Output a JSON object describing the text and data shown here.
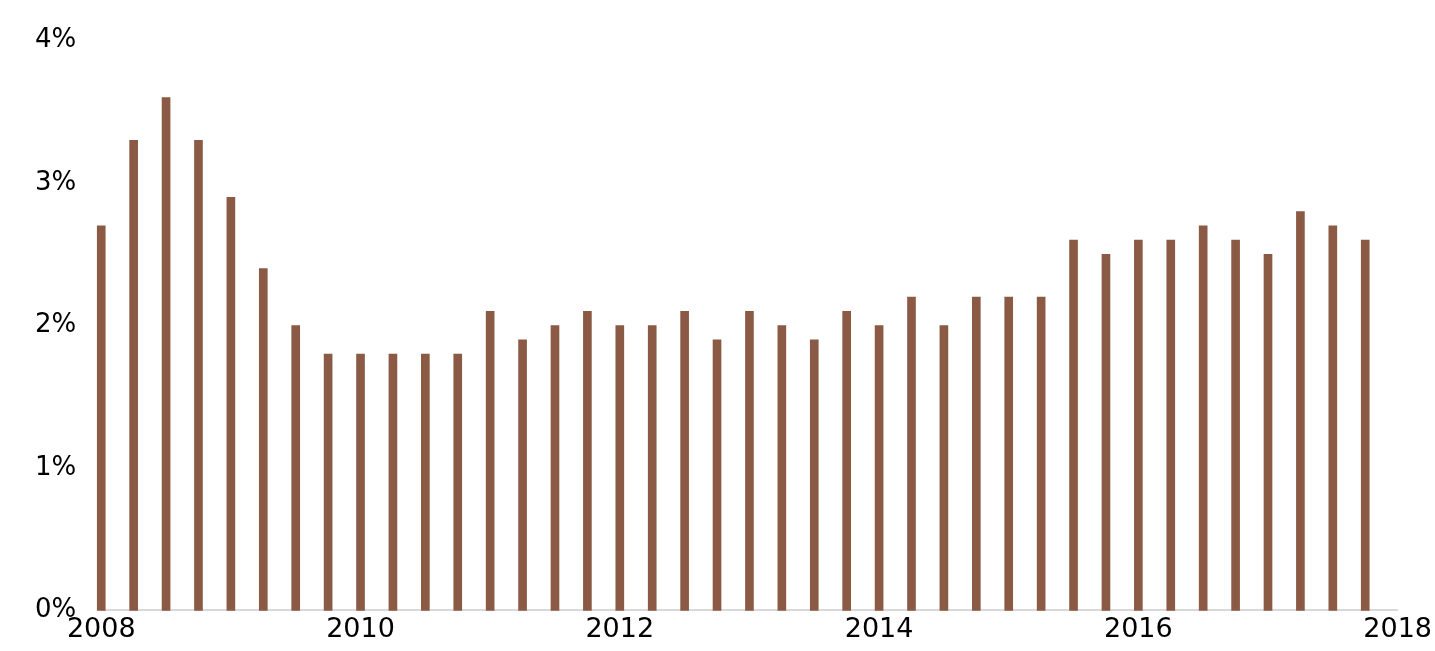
{
  "chart_data": {
    "type": "bar",
    "color": "#8b5a44",
    "x": [
      2008,
      2008.25,
      2008.5,
      2008.75,
      2009,
      2009.25,
      2009.5,
      2009.75,
      2010,
      2010.25,
      2010.5,
      2010.75,
      2011,
      2011.25,
      2011.5,
      2011.75,
      2012,
      2012.25,
      2012.5,
      2012.75,
      2013,
      2013.25,
      2013.5,
      2013.75,
      2014,
      2014.25,
      2014.5,
      2014.75,
      2015,
      2015.25,
      2015.5,
      2015.75,
      2016,
      2016.25,
      2016.5,
      2016.75,
      2017,
      2017.25,
      2017.5,
      2017.75
    ],
    "values": [
      2.7,
      3.3,
      3.6,
      3.3,
      2.9,
      2.4,
      2.0,
      1.8,
      1.8,
      1.8,
      1.8,
      1.8,
      2.1,
      1.9,
      2.0,
      2.1,
      2.0,
      2.0,
      2.1,
      1.9,
      2.1,
      2.0,
      1.9,
      2.1,
      2.0,
      2.2,
      2.0,
      2.2,
      2.2,
      2.2,
      2.6,
      2.5,
      2.6,
      2.6,
      2.7,
      2.6,
      2.5,
      2.8,
      2.7,
      2.6
    ],
    "xlim": [
      2008,
      2018
    ],
    "xticks": [
      2008,
      2010,
      2012,
      2014,
      2016,
      2018
    ],
    "ylim": [
      0,
      4
    ],
    "yticks": [
      {
        "value": 0,
        "label": "0%"
      },
      {
        "value": 1,
        "label": "1%"
      },
      {
        "value": 2,
        "label": "2%"
      },
      {
        "value": 3,
        "label": "3%"
      },
      {
        "value": 4,
        "label": "4%"
      }
    ],
    "grid": false,
    "legend": false
  }
}
